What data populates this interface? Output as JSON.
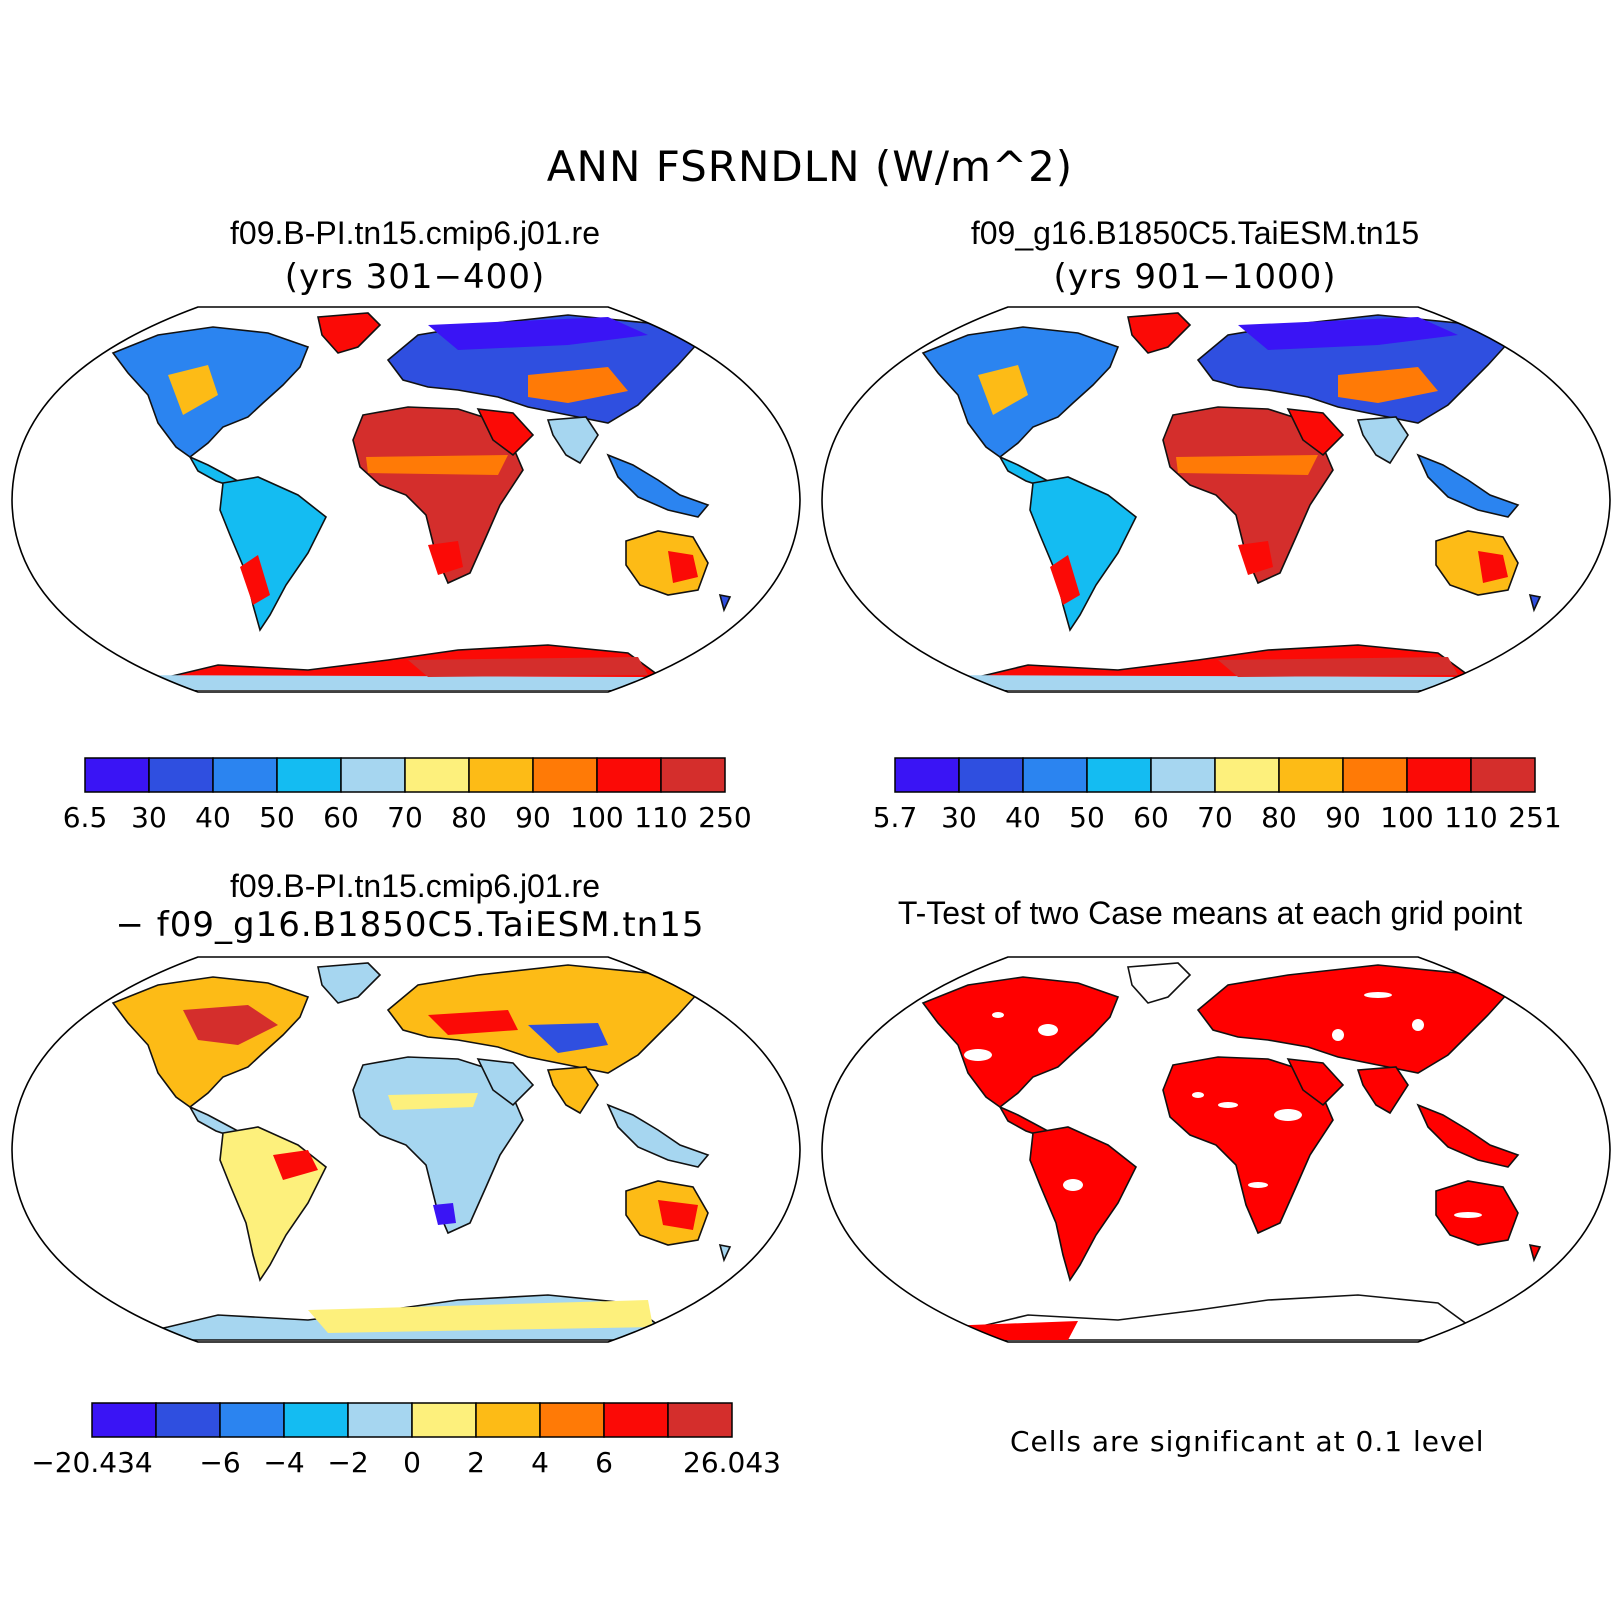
{
  "title": "ANN FSRNDLN (W/m^2)",
  "colors": [
    "#3a14f5",
    "#2f4fe0",
    "#2b84f0",
    "#14bcf2",
    "#a6d6f0",
    "#fdf07c",
    "#fdbb16",
    "#ff7a06",
    "#fb0a06",
    "#d42e2c"
  ],
  "panels": [
    {
      "title": "f09.B-PI.tn15.cmip6.j01.re",
      "subtitle": "(yrs 301−400)",
      "colorbar_labels": [
        "6.5",
        "30",
        "40",
        "50",
        "60",
        "70",
        "80",
        "90",
        "100",
        "110",
        "250"
      ]
    },
    {
      "title": "f09_g16.B1850C5.TaiESM.tn15",
      "subtitle": "(yrs 901−1000)",
      "colorbar_labels": [
        "5.7",
        "30",
        "40",
        "50",
        "60",
        "70",
        "80",
        "90",
        "100",
        "110",
        "251"
      ]
    },
    {
      "title": "f09.B-PI.tn15.cmip6.j01.re",
      "subtitle": "− f09_g16.B1850C5.TaiESM.tn15",
      "colorbar_labels": [
        "−20.434",
        "−6",
        "−4",
        "−2",
        "0",
        "2",
        "4",
        "6",
        "26.043"
      ]
    },
    {
      "title": "T-Test of two Case means at each grid point",
      "note": "Cells are significant at 0.1 level",
      "significance_color": "#ff0000"
    }
  ]
}
